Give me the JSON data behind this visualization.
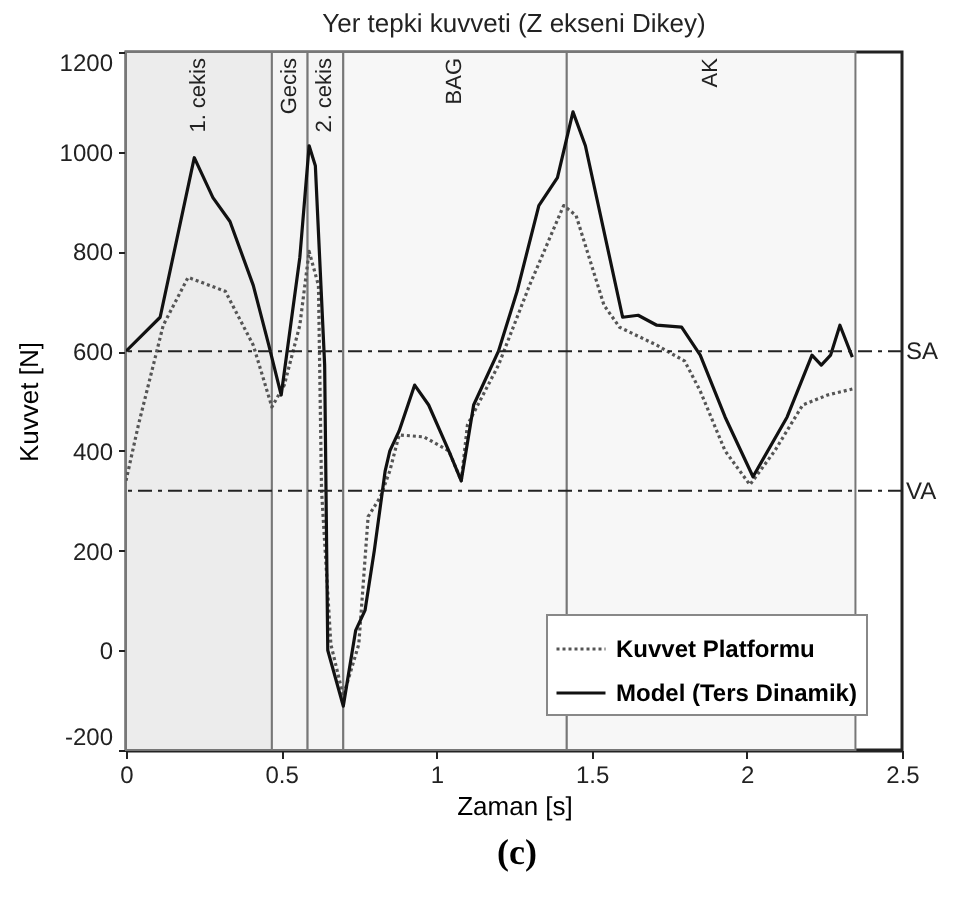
{
  "chart_data": {
    "type": "line",
    "title": "Yer tepki kuvveti (Z ekseni Dikey)",
    "xlabel": "Zaman [s]",
    "ylabel": "Kuvvet [N]",
    "xlim": [
      0,
      2.5
    ],
    "xticks": [
      0,
      0.5,
      1,
      1.5,
      2,
      2.5
    ],
    "ylim": [
      -200,
      1200
    ],
    "yticks": [
      -200,
      0,
      200,
      400,
      600,
      800,
      1000,
      1200
    ],
    "grid": false,
    "legend": "bottom right",
    "series": [
      {
        "name": "Kuvvet Platformu",
        "color": "#555555",
        "line_style": "dotted",
        "x": [
          0,
          0.04,
          0.12,
          0.2,
          0.32,
          0.41,
          0.47,
          0.51,
          0.56,
          0.59,
          0.62,
          0.63,
          0.66,
          0.7,
          0.75,
          0.78,
          0.82,
          0.85,
          0.88,
          0.96,
          1.04,
          1.08,
          1.1,
          1.2,
          1.3,
          1.41,
          1.45,
          1.54,
          1.59,
          1.71,
          1.8,
          1.85,
          1.93,
          2.01,
          2.09,
          2.18,
          2.26,
          2.34
        ],
        "values": [
          340,
          452,
          652,
          748,
          720,
          612,
          488,
          532,
          652,
          800,
          732,
          320,
          12,
          -92,
          12,
          268,
          308,
          360,
          432,
          428,
          400,
          340,
          452,
          572,
          732,
          892,
          872,
          692,
          648,
          612,
          580,
          520,
          400,
          332,
          400,
          492,
          512,
          524
        ]
      },
      {
        "name": "Model (Ters Dinamik)",
        "color": "#111111",
        "line_style": "solid",
        "x": [
          0,
          0.11,
          0.22,
          0.28,
          0.335,
          0.41,
          0.46,
          0.5,
          0.56,
          0.59,
          0.61,
          0.64,
          0.65,
          0.7,
          0.74,
          0.77,
          0.8,
          0.835,
          0.85,
          0.88,
          0.93,
          0.975,
          1.04,
          1.08,
          1.12,
          1.2,
          1.26,
          1.33,
          1.39,
          1.44,
          1.48,
          1.6,
          1.65,
          1.71,
          1.79,
          1.85,
          1.93,
          2.02,
          2.13,
          2.21,
          2.24,
          2.27,
          2.3,
          2.34
        ],
        "values": [
          600,
          668,
          988,
          908,
          860,
          732,
          612,
          512,
          788,
          1012,
          972,
          572,
          0,
          -112,
          40,
          80,
          200,
          360,
          400,
          440,
          532,
          492,
          400,
          340,
          492,
          600,
          720,
          892,
          948,
          1080,
          1012,
          668,
          672,
          652,
          648,
          592,
          468,
          348,
          468,
          592,
          572,
          592,
          652,
          588
        ]
      }
    ],
    "ref_lines": [
      {
        "axis": "y",
        "value": 600,
        "label": "SA",
        "color": "#222222",
        "line_style": "dashed"
      },
      {
        "axis": "y",
        "value": 320,
        "label": "VA",
        "color": "#222222",
        "line_style": "dashed"
      }
    ],
    "bands": [
      {
        "axis": "x",
        "from": 0,
        "to": 0.47,
        "label": "1. cekis",
        "color": "#ececec"
      },
      {
        "axis": "x",
        "from": 0.47,
        "to": 0.585,
        "label": "Gecis",
        "color": "#f4f4f4"
      },
      {
        "axis": "x",
        "from": 0.585,
        "to": 0.7,
        "label": "2. cekis",
        "color": "#f4f4f4"
      },
      {
        "axis": "x",
        "from": 0.7,
        "to": 1.42,
        "label": "BAG",
        "color": "#f7f7f7"
      },
      {
        "axis": "x",
        "from": 1.42,
        "to": 2.35,
        "label": "AK",
        "color": "#f7f7f7"
      }
    ],
    "annotations": [
      "(c)"
    ]
  }
}
